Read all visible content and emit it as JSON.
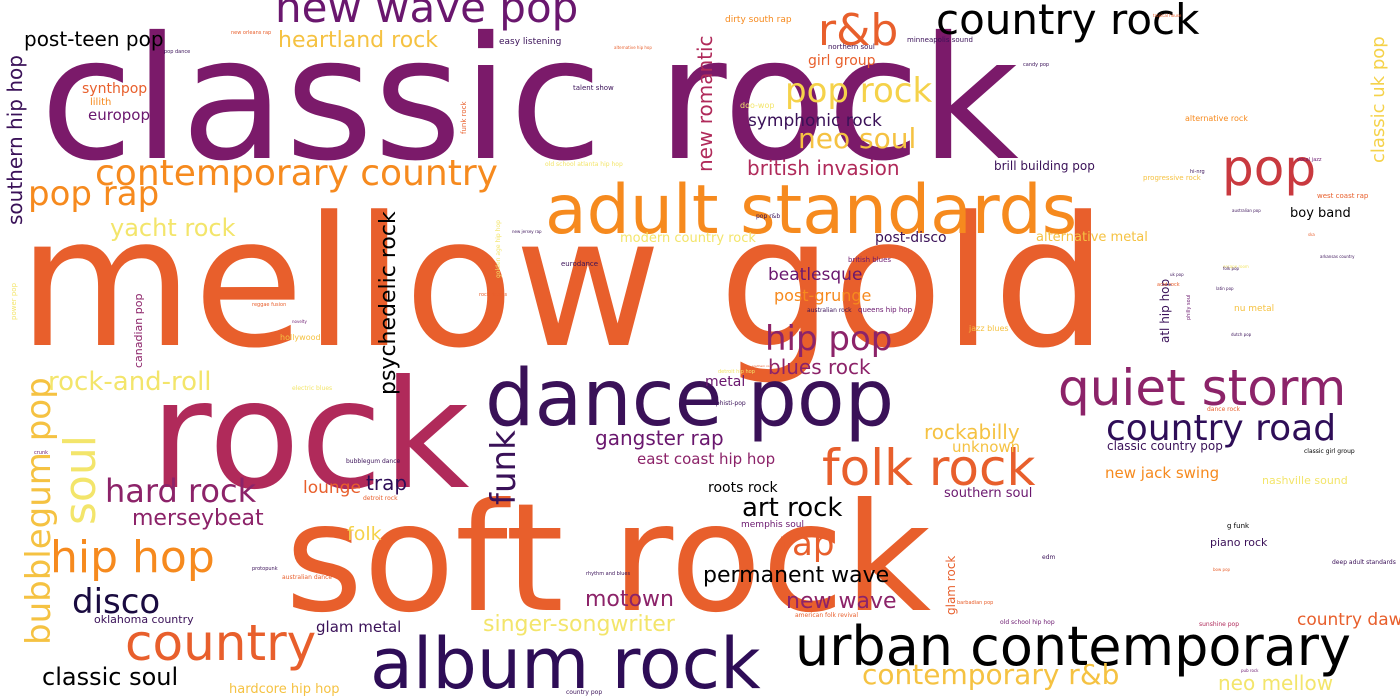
{
  "chart_data": {
    "type": "wordcloud",
    "palette": [
      "#7b1a6a",
      "#e85f2c",
      "#f68a1e",
      "#f5c242",
      "#f3e56b",
      "#b02a5a",
      "#2e0d57",
      "#000000"
    ],
    "words": [
      {
        "text": "classic rock",
        "color": "#7b1a6a"
      },
      {
        "text": "mellow gold",
        "color": "#e85f2c"
      },
      {
        "text": "soft rock",
        "color": "#e85f2c"
      },
      {
        "text": "rock",
        "color": "#b02a5a"
      },
      {
        "text": "adult standards",
        "color": "#f68a1e"
      },
      {
        "text": "dance pop",
        "color": "#3a1158"
      },
      {
        "text": "album rock",
        "color": "#2e0d57"
      },
      {
        "text": "urban contemporary",
        "color": "#000000"
      },
      {
        "text": "quiet storm",
        "color": "#8c2369"
      },
      {
        "text": "country",
        "color": "#e85f2c"
      },
      {
        "text": "folk rock",
        "color": "#e85f2c"
      },
      {
        "text": "new wave pop",
        "color": "#6a176e"
      },
      {
        "text": "country rock",
        "color": "#000000"
      },
      {
        "text": "r&b",
        "color": "#e85f2c"
      },
      {
        "text": "pop",
        "color": "#c9393f"
      },
      {
        "text": "contemporary country",
        "color": "#f68a1e"
      },
      {
        "text": "hip hop",
        "color": "#f68a1e"
      },
      {
        "text": "soul",
        "color": "#f3e56b"
      },
      {
        "text": "bubblegum pop",
        "color": "#f5c242"
      },
      {
        "text": "country road",
        "color": "#2e0d57"
      },
      {
        "text": "pop rock",
        "color": "#f5d24a"
      },
      {
        "text": "hip pop",
        "color": "#8c2369"
      },
      {
        "text": "disco",
        "color": "#1a0b40"
      },
      {
        "text": "pop rap",
        "color": "#f68a1e"
      },
      {
        "text": "hard rock",
        "color": "#8c2369"
      },
      {
        "text": "neo soul",
        "color": "#f5c242"
      },
      {
        "text": "funk",
        "color": "#3a1158"
      },
      {
        "text": "rap",
        "color": "#e85f2c"
      },
      {
        "text": "psychedelic rock",
        "color": "#000000"
      },
      {
        "text": "rock-and-roll",
        "color": "#f3e56b"
      },
      {
        "text": "contemporary r&b",
        "color": "#f5c242"
      },
      {
        "text": "classic soul",
        "color": "#000000"
      },
      {
        "text": "heartland rock",
        "color": "#f5c242"
      },
      {
        "text": "post-teen pop",
        "color": "#000000"
      },
      {
        "text": "art rock",
        "color": "#000000"
      },
      {
        "text": "permanent wave",
        "color": "#000000"
      },
      {
        "text": "southern hip hop",
        "color": "#3a1158"
      },
      {
        "text": "yacht rock",
        "color": "#f3e56b"
      },
      {
        "text": "merseybeat",
        "color": "#8c2369"
      },
      {
        "text": "gangster rap",
        "color": "#6a176e"
      },
      {
        "text": "singer-songwriter",
        "color": "#f3e56b"
      },
      {
        "text": "motown",
        "color": "#8c2369"
      },
      {
        "text": "new wave",
        "color": "#8c2369"
      },
      {
        "text": "rockabilly",
        "color": "#f5c242"
      },
      {
        "text": "british invasion",
        "color": "#b02a5a"
      },
      {
        "text": "new romantic",
        "color": "#b02a5a"
      },
      {
        "text": "blues rock",
        "color": "#8c2369"
      },
      {
        "text": "neo mellow",
        "color": "#f3e56b"
      },
      {
        "text": "symphonic rock",
        "color": "#3a1158"
      },
      {
        "text": "classic uk pop",
        "color": "#f5d24a"
      },
      {
        "text": "beatlesque",
        "color": "#6a176e"
      },
      {
        "text": "post-grunge",
        "color": "#f68a1e"
      },
      {
        "text": "trap",
        "color": "#2e0d57"
      },
      {
        "text": "country dawn",
        "color": "#e85f2c"
      },
      {
        "text": "glam metal",
        "color": "#3a1158"
      },
      {
        "text": "lounge",
        "color": "#e85f2c"
      },
      {
        "text": "folk",
        "color": "#f5d24a"
      },
      {
        "text": "east coast hip hop",
        "color": "#8c2369"
      },
      {
        "text": "new jack swing",
        "color": "#f68a1e"
      },
      {
        "text": "unknown",
        "color": "#f5c242"
      },
      {
        "text": "roots rock",
        "color": "#000000"
      },
      {
        "text": "synthpop",
        "color": "#e85f2c"
      },
      {
        "text": "europop",
        "color": "#6a176e"
      },
      {
        "text": "girl group",
        "color": "#e85f2c"
      },
      {
        "text": "metal",
        "color": "#6a176e"
      },
      {
        "text": "post-disco",
        "color": "#3a1158"
      },
      {
        "text": "boy band",
        "color": "#000000"
      },
      {
        "text": "southern soul",
        "color": "#6a176e"
      },
      {
        "text": "hardcore hip hop",
        "color": "#f5c242"
      },
      {
        "text": "modern country rock",
        "color": "#f3e56b"
      },
      {
        "text": "alternative metal",
        "color": "#f5c242"
      },
      {
        "text": "canadian pop",
        "color": "#8c2369"
      },
      {
        "text": "atl hip hop",
        "color": "#3a1158"
      },
      {
        "text": "glam rock",
        "color": "#e85f2c"
      },
      {
        "text": "classic country pop",
        "color": "#3a1158"
      },
      {
        "text": "brill building pop",
        "color": "#3a1158"
      },
      {
        "text": "oklahoma country",
        "color": "#3a1158"
      },
      {
        "text": "easy listening",
        "color": "#3a1158"
      },
      {
        "text": "dirty south rap",
        "color": "#f68a1e"
      },
      {
        "text": "nashville sound",
        "color": "#f3e56b"
      },
      {
        "text": "piano rock",
        "color": "#3a1158"
      },
      {
        "text": "lilith",
        "color": "#f68a1e"
      },
      {
        "text": "jazz blues",
        "color": "#f5c242"
      },
      {
        "text": "nu metal",
        "color": "#f5c242"
      },
      {
        "text": "hollywood",
        "color": "#f5c242"
      },
      {
        "text": "memphis soul",
        "color": "#6a176e"
      },
      {
        "text": "talent show",
        "color": "#3a1158"
      },
      {
        "text": "doo-wop",
        "color": "#f3e56b"
      },
      {
        "text": "northern soul",
        "color": "#3a1158"
      },
      {
        "text": "minneapolis sound",
        "color": "#3a1158"
      },
      {
        "text": "alternative rock",
        "color": "#f68a1e"
      },
      {
        "text": "progressive rock",
        "color": "#f5c242"
      },
      {
        "text": "vocal jazz",
        "color": "#6a176e"
      },
      {
        "text": "hi-nrg",
        "color": "#3a1158"
      },
      {
        "text": "west coast rap",
        "color": "#e85f2c"
      },
      {
        "text": "funk rock",
        "color": "#e85f2c"
      },
      {
        "text": "eurodance",
        "color": "#3a1158"
      },
      {
        "text": "british blues",
        "color": "#6a176e"
      },
      {
        "text": "australian rock",
        "color": "#3a1158"
      },
      {
        "text": "queens hip hop",
        "color": "#6a176e"
      },
      {
        "text": "sophisti-pop",
        "color": "#3a1158"
      },
      {
        "text": "detroit hip hop",
        "color": "#f3e56b"
      },
      {
        "text": "bubblegum dance",
        "color": "#3a1158"
      },
      {
        "text": "american folk revival",
        "color": "#e85f2c"
      },
      {
        "text": "old school hip hop",
        "color": "#6a176e"
      },
      {
        "text": "sunshine pop",
        "color": "#b02a5a"
      },
      {
        "text": "barbadian pop",
        "color": "#e85f2c"
      },
      {
        "text": "deep adult standards",
        "color": "#3a1158"
      },
      {
        "text": "classic girl group",
        "color": "#000000"
      },
      {
        "text": "g funk",
        "color": "#000000"
      },
      {
        "text": "edm",
        "color": "#3a1158"
      },
      {
        "text": "protopunk",
        "color": "#3a1158"
      },
      {
        "text": "australian dance",
        "color": "#e85f2c"
      },
      {
        "text": "rhythm and blues",
        "color": "#3a1158"
      },
      {
        "text": "country pop",
        "color": "#3a1158"
      },
      {
        "text": "crunk",
        "color": "#6a176e"
      },
      {
        "text": "detroit rock",
        "color": "#e85f2c"
      },
      {
        "text": "pop dance",
        "color": "#3a1158"
      },
      {
        "text": "new orleans rap",
        "color": "#e85f2c"
      },
      {
        "text": "dance rock",
        "color": "#e85f2c"
      },
      {
        "text": "reggae fusion",
        "color": "#e85f2c"
      },
      {
        "text": "pop r&b",
        "color": "#3a1158"
      },
      {
        "text": "rock drums",
        "color": "#e85f2c"
      },
      {
        "text": "power pop",
        "color": "#f3e56b"
      },
      {
        "text": "acid rock",
        "color": "#e85f2c"
      },
      {
        "text": "latin pop",
        "color": "#3a1158"
      },
      {
        "text": "philly soul",
        "color": "#6a176e"
      },
      {
        "text": "candy pop",
        "color": "#3a1158"
      },
      {
        "text": "uk pop",
        "color": "#3a1158"
      },
      {
        "text": "australian pop",
        "color": "#3a1158"
      },
      {
        "text": "arkansas country",
        "color": "#3a1158"
      },
      {
        "text": "tropical house",
        "color": "#e85f2c"
      },
      {
        "text": "alternative hip hop",
        "color": "#e85f2c"
      },
      {
        "text": "new jersey rap",
        "color": "#3a1158"
      },
      {
        "text": "electric blues",
        "color": "#f3e56b"
      },
      {
        "text": "escape room",
        "color": "#f3e56b"
      },
      {
        "text": "golden age hip hop",
        "color": "#f3e56b"
      },
      {
        "text": "novelty",
        "color": "#6a176e"
      },
      {
        "text": "southern rock",
        "color": "#e85f2c"
      },
      {
        "text": "bow pop",
        "color": "#e85f2c"
      },
      {
        "text": "pub rock",
        "color": "#6a176e"
      },
      {
        "text": "dutch pop",
        "color": "#3a1158"
      },
      {
        "text": "folk pop",
        "color": "#3a1158"
      },
      {
        "text": "ska",
        "color": "#e85f2c"
      },
      {
        "text": "old school atlanta hip hop",
        "color": "#f3e56b"
      }
    ]
  }
}
